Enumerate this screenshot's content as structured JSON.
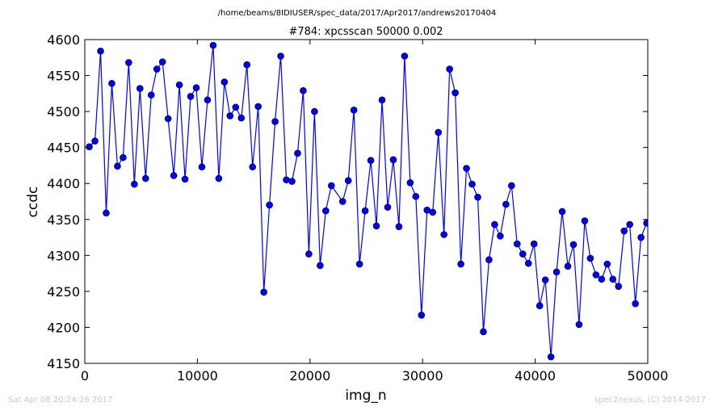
{
  "figure": {
    "suptitle": "/home/beams/8IDIUSER/spec_data/2017/Apr2017/andrews20170404",
    "footer_left": "Sat Apr 08 20:24:26 2017",
    "footer_right": "spec2nexus, (C) 2014-2017"
  },
  "chart_data": {
    "type": "line",
    "title": "#784: xpcsscan 50000 0.002",
    "xlabel": "img_n",
    "ylabel": "ccdc",
    "xlim": [
      0,
      50000
    ],
    "ylim": [
      4150,
      4600
    ],
    "xticks": [
      0,
      10000,
      20000,
      30000,
      40000,
      50000
    ],
    "yticks": [
      4150,
      4200,
      4250,
      4300,
      4350,
      4400,
      4450,
      4500,
      4550,
      4600
    ],
    "grid": false,
    "color": "#0000ff",
    "marker": "circle",
    "x": [
      400,
      900,
      1400,
      1900,
      2400,
      2900,
      3400,
      3900,
      4400,
      4900,
      5400,
      5900,
      6400,
      6900,
      7400,
      7900,
      8400,
      8900,
      9400,
      9900,
      10400,
      10900,
      11400,
      11900,
      12400,
      12900,
      13400,
      13900,
      14400,
      14900,
      15400,
      15900,
      16400,
      16900,
      17400,
      17900,
      18400,
      18900,
      19400,
      19900,
      20400,
      20900,
      21400,
      21900,
      22900,
      23400,
      23900,
      24400,
      24900,
      25400,
      25900,
      26400,
      26900,
      27400,
      27900,
      28400,
      28900,
      29400,
      29900,
      30400,
      30900,
      31400,
      31900,
      32400,
      32900,
      33400,
      33900,
      34400,
      34900,
      35400,
      35900,
      36400,
      36900,
      37400,
      37900,
      38400,
      38900,
      39400,
      39900,
      40400,
      40900,
      41400,
      41900,
      42400,
      42900,
      43400,
      43900,
      44400,
      44900,
      45400,
      45900,
      46400,
      46900,
      47400,
      47900,
      48400,
      48900,
      49400,
      49900
    ],
    "y": [
      4451,
      4459,
      4584,
      4359,
      4539,
      4424,
      4436,
      4568,
      4399,
      4532,
      4407,
      4523,
      4559,
      4569,
      4490,
      4411,
      4537,
      4406,
      4521,
      4533,
      4423,
      4516,
      4592,
      4407,
      4541,
      4494,
      4506,
      4491,
      4565,
      4423,
      4507,
      4249,
      4370,
      4486,
      4577,
      4405,
      4403,
      4442,
      4529,
      4302,
      4500,
      4286,
      4362,
      4397,
      4375,
      4404,
      4502,
      4288,
      4362,
      4432,
      4341,
      4516,
      4367,
      4433,
      4340,
      4577,
      4401,
      4382,
      4217,
      4363,
      4360,
      4471,
      4329,
      4559,
      4526,
      4288,
      4421,
      4399,
      4381,
      4194,
      4294,
      4343,
      4327,
      4371,
      4397,
      4316,
      4302,
      4289,
      4316,
      4230,
      4266,
      4159,
      4277,
      4361,
      4285,
      4315,
      4204,
      4348,
      4296,
      4273,
      4267,
      4288,
      4267,
      4257,
      4334,
      4343,
      4233,
      4325,
      4345
    ]
  }
}
